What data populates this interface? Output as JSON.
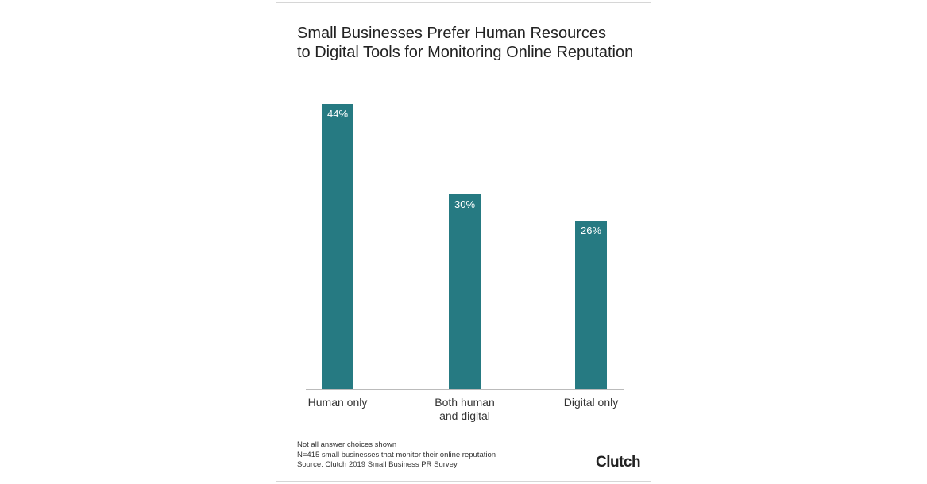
{
  "chart_data": {
    "type": "bar",
    "title": "Small Businesses Prefer Human Resources\nto Digital Tools for Monitoring Online Reputation",
    "categories": [
      "Human only",
      "Both human\nand digital",
      "Digital only"
    ],
    "values": [
      44,
      30,
      26
    ],
    "value_labels": [
      "44%",
      "30%",
      "26%"
    ],
    "color": "#267a82",
    "notes": [
      "Not all answer choices shown",
      "N=415 small businesses that monitor their online reputation",
      "Source: Clutch 2019 Small Business PR Survey"
    ],
    "brand": "Clutch"
  }
}
